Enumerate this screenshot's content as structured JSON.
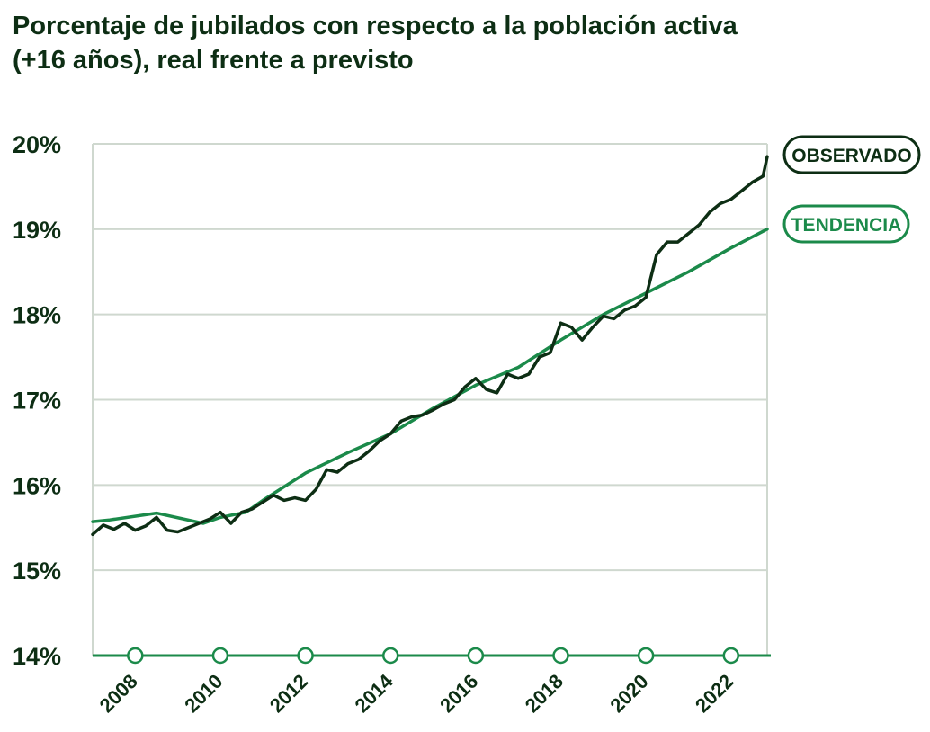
{
  "title_line1": "Porcentaje de jubilados con respecto a la población activa",
  "title_line2": "(+16 años), real frente a previsto",
  "colors": {
    "observed": "#0d2e14",
    "trend": "#1b8a4a",
    "grid": "#cfd8cf",
    "axis": "#1b8a4a"
  },
  "chart_data": {
    "type": "line",
    "title": "Porcentaje de jubilados con respecto a la población activa (+16 años), real frente a previsto",
    "xlim": [
      2007.0,
      2022.85
    ],
    "ylim": [
      14,
      20
    ],
    "y_ticks": [
      14,
      15,
      16,
      17,
      18,
      19,
      20
    ],
    "y_tick_labels": [
      "14%",
      "15%",
      "16%",
      "17%",
      "18%",
      "19%",
      "20%"
    ],
    "x_ticks": [
      2008,
      2010,
      2012,
      2014,
      2016,
      2018,
      2020,
      2022
    ],
    "x_tick_labels": [
      "2008",
      "2010",
      "2012",
      "2014",
      "2016",
      "2018",
      "2020",
      "2022"
    ],
    "grid": true,
    "legend_position": "right",
    "series": [
      {
        "name": "OBSERVADO",
        "points": [
          [
            2007.0,
            15.42
          ],
          [
            2007.25,
            15.53
          ],
          [
            2007.5,
            15.48
          ],
          [
            2007.75,
            15.55
          ],
          [
            2008.0,
            15.47
          ],
          [
            2008.25,
            15.52
          ],
          [
            2008.5,
            15.62
          ],
          [
            2008.75,
            15.47
          ],
          [
            2009.0,
            15.45
          ],
          [
            2009.25,
            15.5
          ],
          [
            2009.5,
            15.55
          ],
          [
            2009.75,
            15.6
          ],
          [
            2010.0,
            15.68
          ],
          [
            2010.25,
            15.55
          ],
          [
            2010.5,
            15.68
          ],
          [
            2010.75,
            15.72
          ],
          [
            2011.0,
            15.8
          ],
          [
            2011.25,
            15.88
          ],
          [
            2011.5,
            15.82
          ],
          [
            2011.75,
            15.85
          ],
          [
            2012.0,
            15.82
          ],
          [
            2012.25,
            15.95
          ],
          [
            2012.5,
            16.18
          ],
          [
            2012.75,
            16.15
          ],
          [
            2013.0,
            16.25
          ],
          [
            2013.25,
            16.3
          ],
          [
            2013.5,
            16.4
          ],
          [
            2013.75,
            16.52
          ],
          [
            2014.0,
            16.6
          ],
          [
            2014.25,
            16.75
          ],
          [
            2014.5,
            16.8
          ],
          [
            2014.75,
            16.82
          ],
          [
            2015.0,
            16.88
          ],
          [
            2015.25,
            16.95
          ],
          [
            2015.5,
            17.0
          ],
          [
            2015.75,
            17.15
          ],
          [
            2016.0,
            17.25
          ],
          [
            2016.25,
            17.12
          ],
          [
            2016.5,
            17.08
          ],
          [
            2016.75,
            17.3
          ],
          [
            2017.0,
            17.25
          ],
          [
            2017.25,
            17.3
          ],
          [
            2017.5,
            17.5
          ],
          [
            2017.75,
            17.55
          ],
          [
            2018.0,
            17.9
          ],
          [
            2018.25,
            17.85
          ],
          [
            2018.5,
            17.7
          ],
          [
            2018.75,
            17.85
          ],
          [
            2019.0,
            17.98
          ],
          [
            2019.25,
            17.95
          ],
          [
            2019.5,
            18.05
          ],
          [
            2019.75,
            18.1
          ],
          [
            2020.0,
            18.2
          ],
          [
            2020.25,
            18.7
          ],
          [
            2020.5,
            18.85
          ],
          [
            2020.75,
            18.85
          ],
          [
            2021.0,
            18.95
          ],
          [
            2021.25,
            19.05
          ],
          [
            2021.5,
            19.2
          ],
          [
            2021.75,
            19.3
          ],
          [
            2022.0,
            19.35
          ],
          [
            2022.25,
            19.45
          ],
          [
            2022.5,
            19.55
          ],
          [
            2022.75,
            19.62
          ],
          [
            2022.85,
            19.85
          ]
        ]
      },
      {
        "name": "TENDENCIA",
        "points": [
          [
            2007.0,
            15.57
          ],
          [
            2007.4,
            15.59
          ],
          [
            2008.5,
            15.67
          ],
          [
            2009.6,
            15.55
          ],
          [
            2010.0,
            15.62
          ],
          [
            2010.6,
            15.68
          ],
          [
            2011.0,
            15.82
          ],
          [
            2012.0,
            16.14
          ],
          [
            2013.0,
            16.38
          ],
          [
            2014.0,
            16.6
          ],
          [
            2015.0,
            16.9
          ],
          [
            2016.0,
            17.17
          ],
          [
            2017.0,
            17.38
          ],
          [
            2018.0,
            17.7
          ],
          [
            2019.0,
            18.0
          ],
          [
            2020.0,
            18.25
          ],
          [
            2021.0,
            18.5
          ],
          [
            2022.0,
            18.78
          ],
          [
            2022.85,
            19.0
          ]
        ]
      }
    ]
  }
}
